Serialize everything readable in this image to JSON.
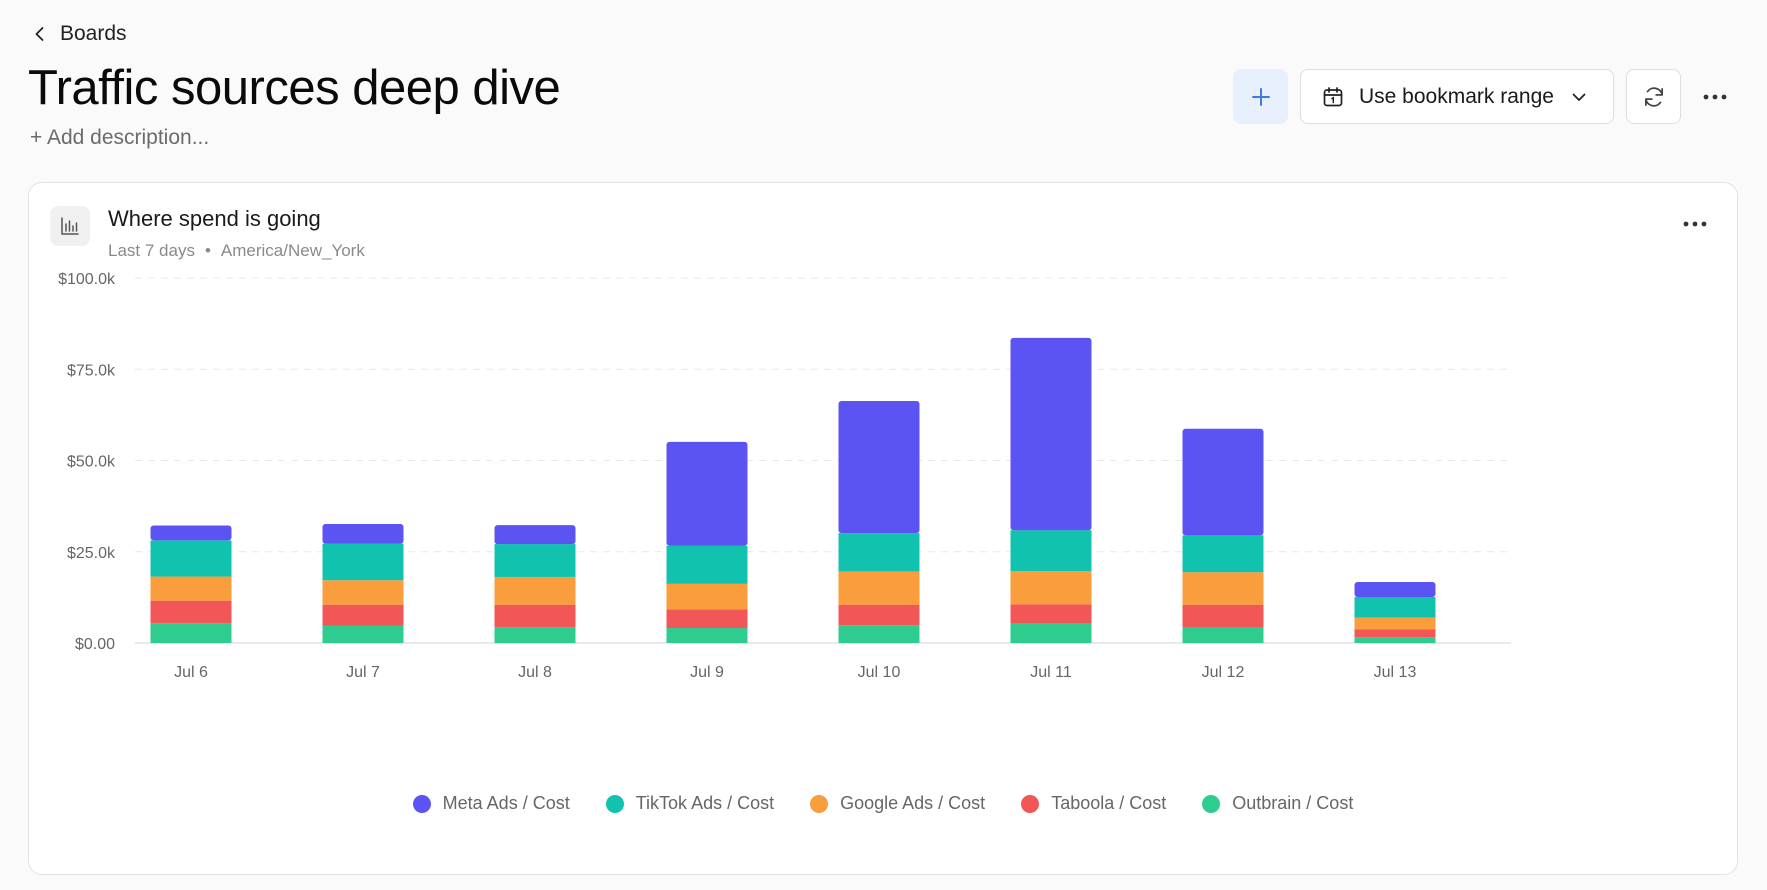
{
  "nav": {
    "back_label": "Boards"
  },
  "page": {
    "title": "Traffic sources deep dive",
    "add_description": "+ Add description..."
  },
  "toolbar": {
    "date_range_label": "Use bookmark range",
    "icons": {
      "add": "plus-icon",
      "date": "calendar-icon",
      "dropdown": "chevron-down-icon",
      "refresh": "refresh-icon",
      "more": "more-horizontal-icon"
    }
  },
  "card": {
    "title": "Where spend is going",
    "range": "Last 7 days",
    "separator": "•",
    "timezone": "America/New_York",
    "icon": "bar-chart-icon"
  },
  "chart_data": {
    "type": "bar",
    "stacked": true,
    "categories": [
      "Jul 6",
      "Jul 7",
      "Jul 8",
      "Jul 9",
      "Jul 10",
      "Jul 11",
      "Jul 12",
      "Jul 13"
    ],
    "ylim": [
      0,
      100000
    ],
    "y_ticks": [
      0,
      25000,
      50000,
      75000,
      100000
    ],
    "y_tick_labels": [
      "$0.00",
      "$25.0k",
      "$50.0k",
      "$75.0k",
      "$100.0k"
    ],
    "grid": true,
    "legend_position": "bottom-center",
    "series": [
      {
        "name": "Outbrain / Cost",
        "color": "#2ecc8f",
        "values": [
          5400,
          4800,
          4300,
          4100,
          4900,
          5300,
          4200,
          1600
        ]
      },
      {
        "name": "Taboola / Cost",
        "color": "#f25757",
        "values": [
          6200,
          5700,
          6200,
          5100,
          5600,
          5300,
          6300,
          2100
        ]
      },
      {
        "name": "Google Ads / Cost",
        "color": "#f99d3d",
        "values": [
          6600,
          6700,
          7600,
          7000,
          9100,
          9100,
          8900,
          3300
        ]
      },
      {
        "name": "TikTok Ads / Cost",
        "color": "#11c2ae",
        "values": [
          9900,
          10000,
          9000,
          10400,
          10500,
          11200,
          10100,
          5600
        ]
      },
      {
        "name": "Meta Ads / Cost",
        "color": "#5b54f2",
        "values": [
          4100,
          5400,
          5200,
          28500,
          36200,
          52700,
          29200,
          4100
        ]
      }
    ]
  },
  "legend_order": [
    4,
    3,
    2,
    1,
    0
  ]
}
